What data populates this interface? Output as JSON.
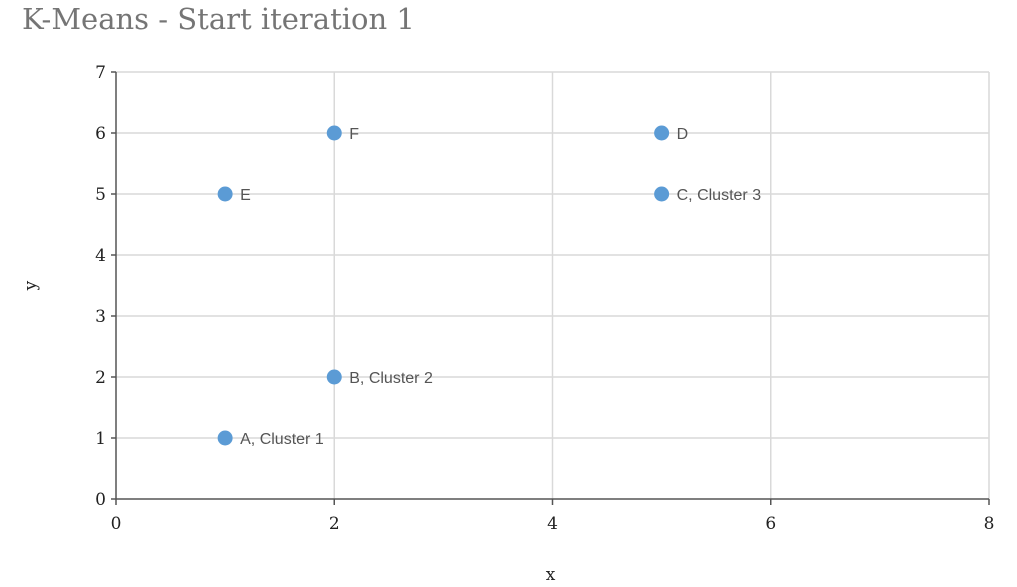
{
  "chart_data": {
    "type": "scatter",
    "title": "K-Means - Start iteration 1",
    "xlabel": "x",
    "ylabel": "y",
    "xlim": [
      0,
      8
    ],
    "ylim": [
      0,
      7
    ],
    "x_ticks": [
      0,
      2,
      4,
      6,
      8
    ],
    "y_ticks": [
      0,
      1,
      2,
      3,
      4,
      5,
      6,
      7
    ],
    "grid": true,
    "marker_color": "#5B9BD5",
    "points": [
      {
        "label": "A, Cluster 1",
        "x": 1,
        "y": 1
      },
      {
        "label": "B, Cluster 2",
        "x": 2,
        "y": 2
      },
      {
        "label": "C, Cluster 3",
        "x": 5,
        "y": 5
      },
      {
        "label": "D",
        "x": 5,
        "y": 6
      },
      {
        "label": "E",
        "x": 1,
        "y": 5
      },
      {
        "label": "F",
        "x": 2,
        "y": 6
      }
    ]
  }
}
